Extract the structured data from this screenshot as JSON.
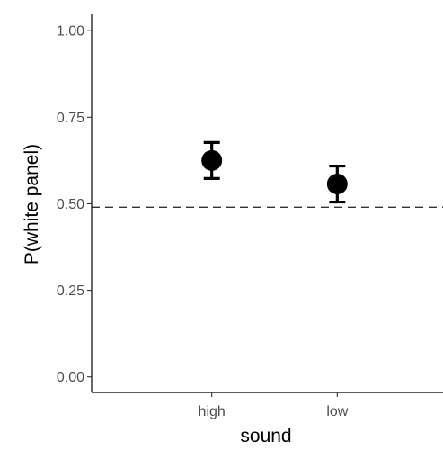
{
  "chart_data": {
    "type": "scatter",
    "title": "",
    "xlabel": "sound",
    "ylabel": "P(white panel)",
    "categories": [
      "high",
      "low"
    ],
    "series": [
      {
        "values": [
          0.625,
          0.557
        ],
        "error_low": [
          0.573,
          0.505
        ],
        "error_high": [
          0.677,
          0.609
        ]
      }
    ],
    "reference_line": {
      "y": 0.49,
      "style": "dashed"
    },
    "ylim": [
      -0.045,
      1.05
    ],
    "yticks": [
      0.0,
      0.25,
      0.5,
      0.75,
      1.0
    ],
    "ytick_labels": [
      "0.00",
      "0.25",
      "0.50",
      "0.75",
      "1.00"
    ],
    "grid": false,
    "legend": "none",
    "colors": {
      "point": "#000000",
      "axis": "#000000",
      "tick_text": "#4d4d4d",
      "reference": "#333333"
    }
  }
}
